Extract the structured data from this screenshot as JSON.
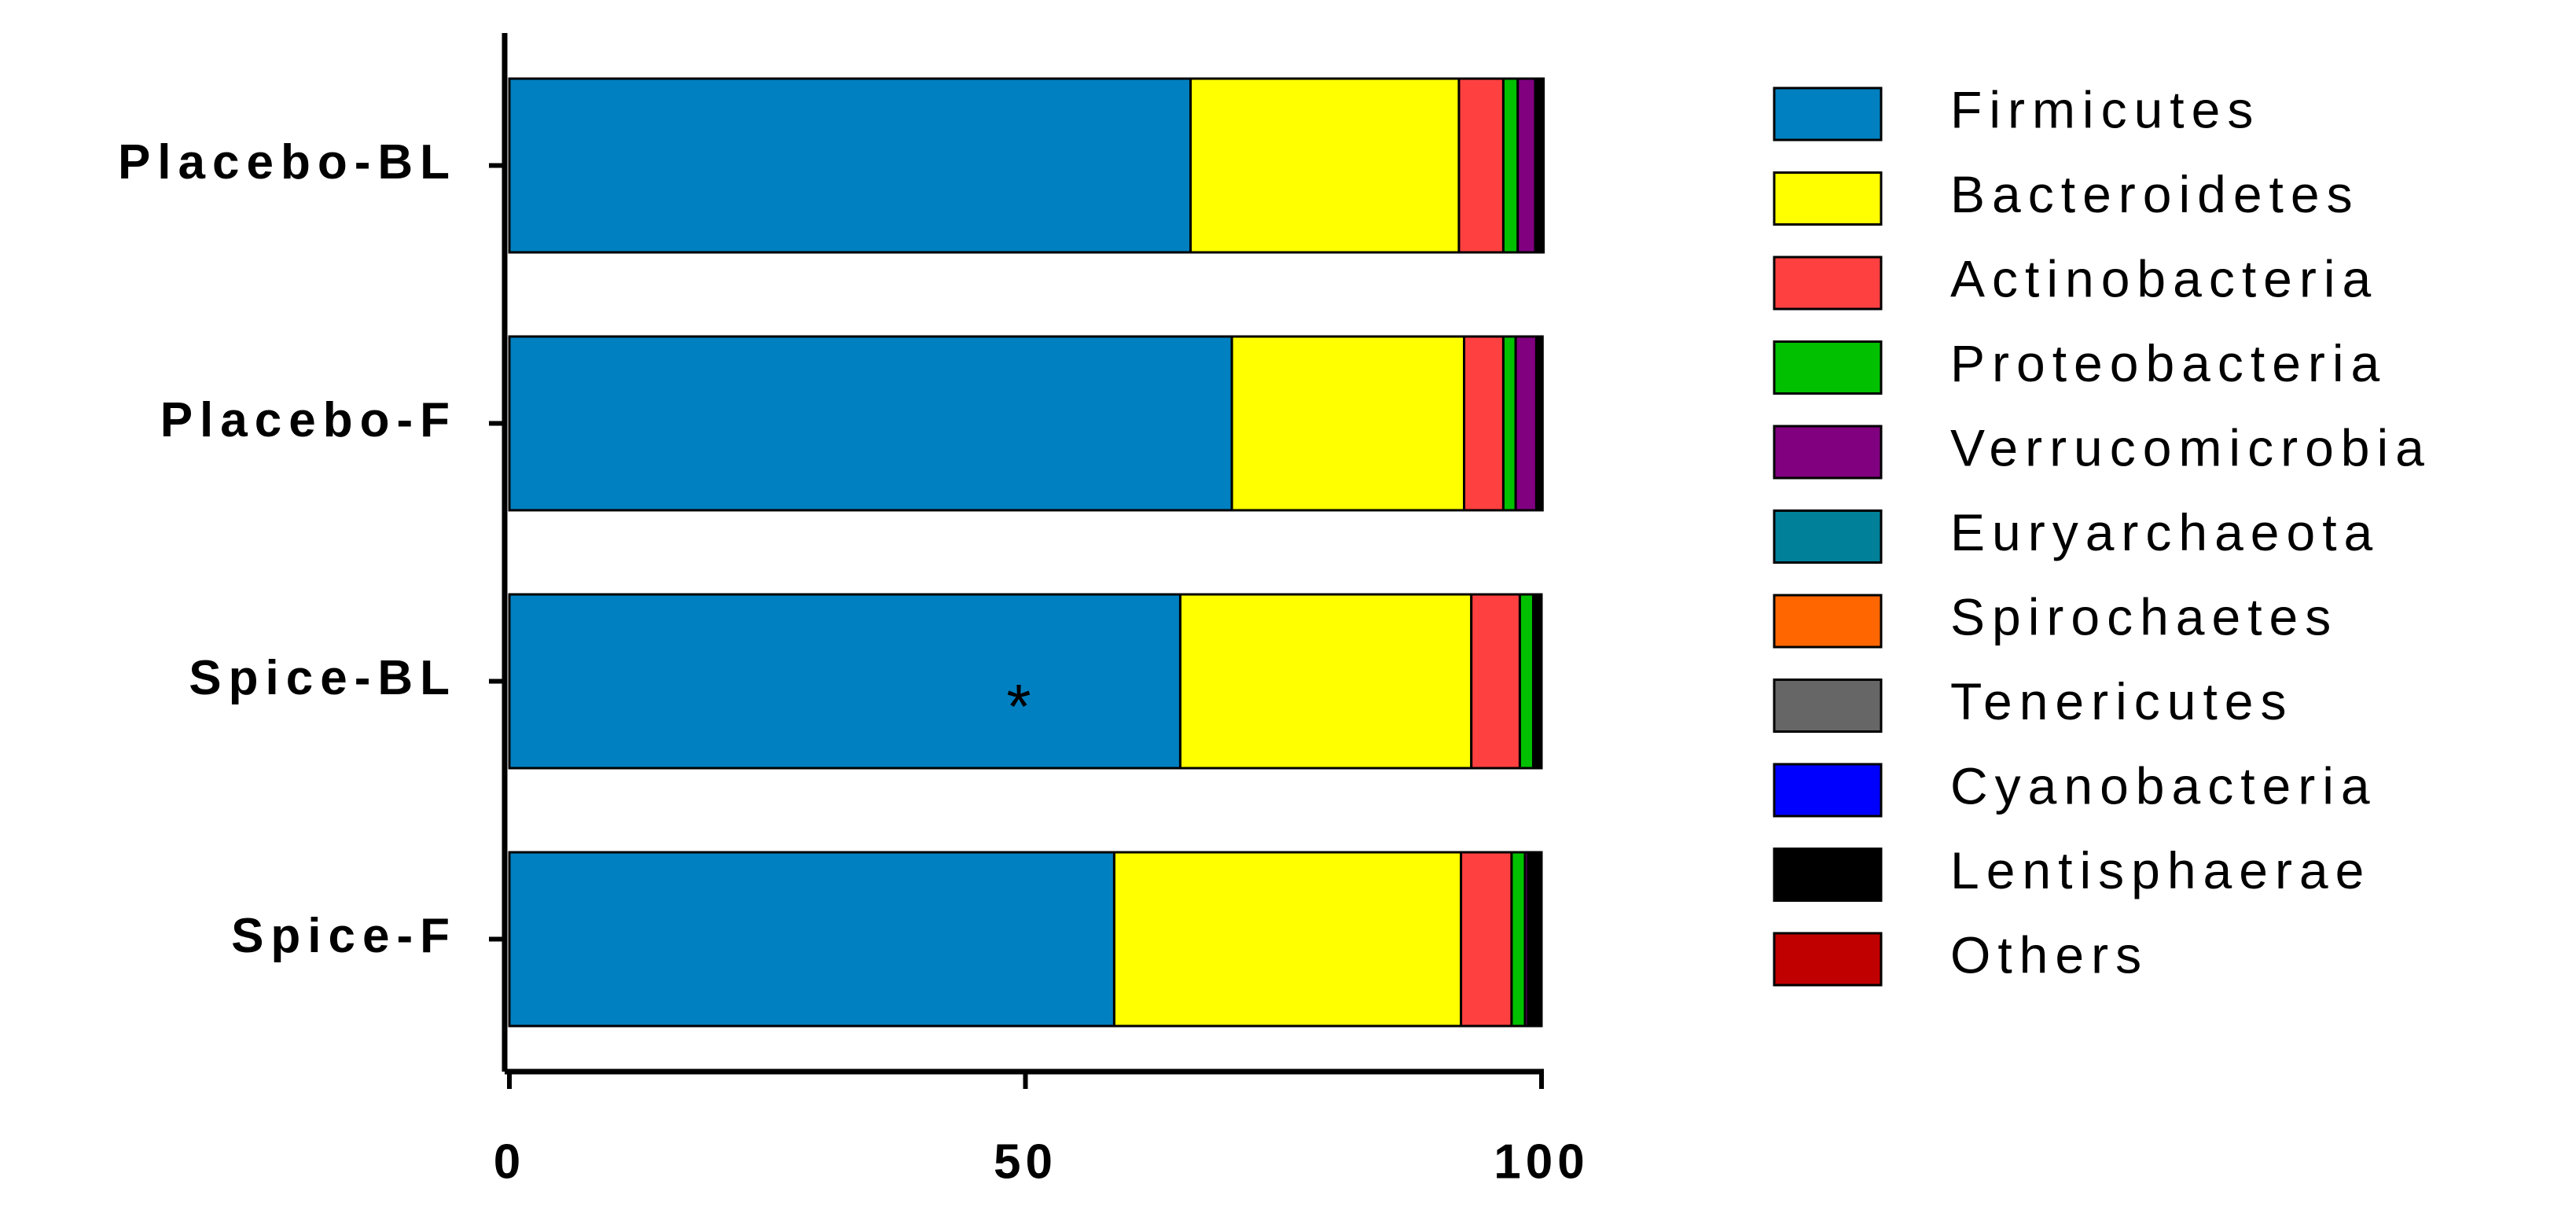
{
  "chart_data": {
    "type": "stacked-bar-horizontal",
    "categories": [
      "Placebo-BL",
      "Placebo-F",
      "Spice-BL",
      "Spice-F"
    ],
    "series": [
      {
        "name": "Firmicutes",
        "color": "#0080c0",
        "values": [
          66,
          70,
          65,
          58.6
        ]
      },
      {
        "name": "Bacteroidetes",
        "color": "#ffff00",
        "values": [
          26,
          22.5,
          28.2,
          33.6
        ]
      },
      {
        "name": "Actinobacteria",
        "color": "#ff4040",
        "values": [
          4.3,
          3.8,
          4.7,
          4.9
        ]
      },
      {
        "name": "Proteobacteria",
        "color": "#00c000",
        "values": [
          1.4,
          1.2,
          1.3,
          1.3
        ]
      },
      {
        "name": "Verrucomicrobia",
        "color": "#800080",
        "values": [
          1.7,
          2.0,
          0.1,
          0.3
        ]
      },
      {
        "name": "Euryarchaeota",
        "color": "#008099",
        "values": [
          0.1,
          0.1,
          0.1,
          0.2
        ]
      },
      {
        "name": "Spirochaetes",
        "color": "#ff6600",
        "values": [
          0.1,
          0.1,
          0.1,
          0.2
        ]
      },
      {
        "name": "Tenericutes",
        "color": "#666666",
        "values": [
          0.1,
          0.1,
          0.1,
          0.2
        ]
      },
      {
        "name": "Cyanobacteria",
        "color": "#0000ff",
        "values": [
          0.1,
          0.0,
          0.1,
          0.2
        ]
      },
      {
        "name": "Lentisphaerae",
        "color": "#000000",
        "values": [
          0.3,
          0.2,
          0.2,
          0.3
        ]
      },
      {
        "name": "Others",
        "color": "#c00000",
        "values": [
          0.1,
          0.1,
          0.1,
          0.2
        ]
      }
    ],
    "xlim": [
      0,
      100
    ],
    "xticks": [
      0,
      50,
      100
    ],
    "annotations": [
      "*"
    ]
  }
}
